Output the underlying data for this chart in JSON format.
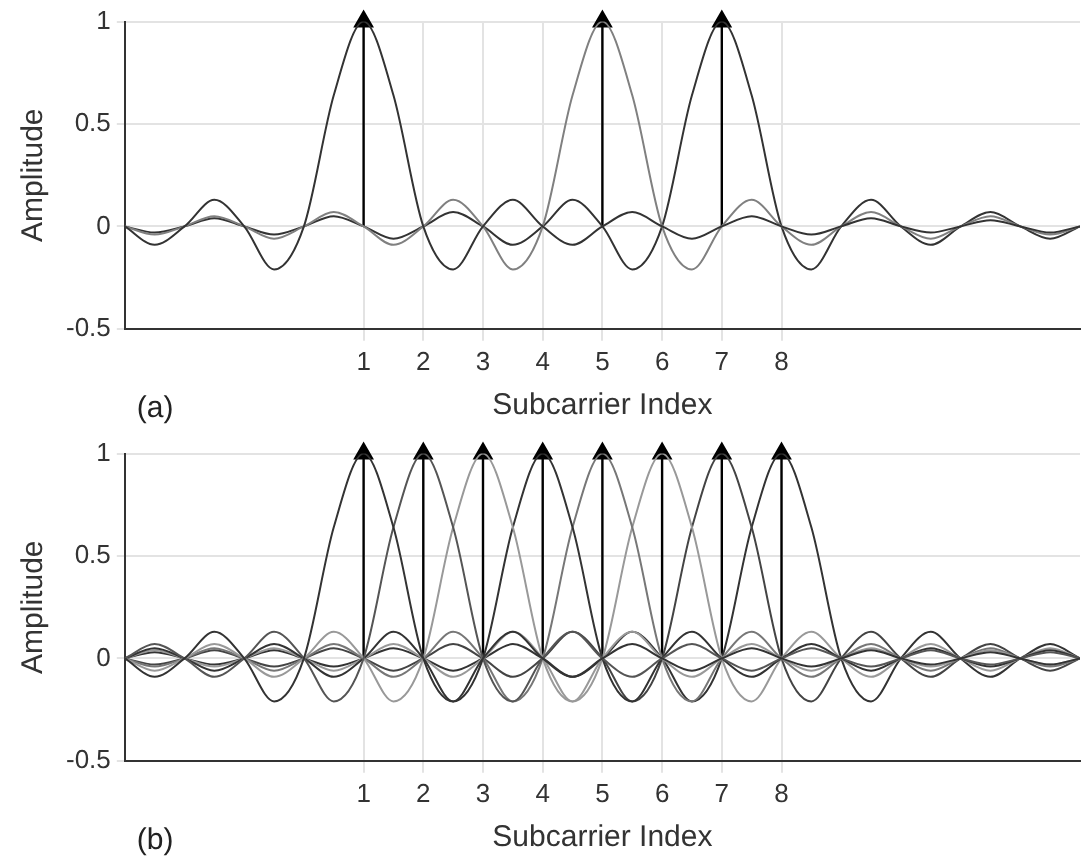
{
  "chart_data": [
    {
      "type": "line",
      "xlabel": "Subcarrier Index",
      "ylabel": "Amplitude",
      "annotations": [
        "(a)"
      ],
      "xlim": [
        -3,
        13
      ],
      "ylim": [
        -0.5,
        1
      ],
      "xticks": [
        1,
        2,
        3,
        4,
        5,
        6,
        7,
        8
      ],
      "yticks": [
        -0.5,
        0,
        0.5,
        1
      ],
      "grid": true,
      "legend": false,
      "marker": "none",
      "line_style": "solid",
      "x": [
        -3,
        -2.5,
        -2,
        -1.5,
        -1,
        -0.5,
        0,
        0.5,
        1,
        1.5,
        2,
        2.5,
        3,
        3.5,
        4,
        4.5,
        5,
        5.5,
        6,
        6.5,
        7,
        7.5,
        8,
        8.5,
        9,
        9.5,
        10,
        10.5,
        11,
        11.5,
        12,
        12.5,
        13
      ],
      "series": [
        {
          "color": "#333333",
          "values": [
            0,
            -0.09,
            0,
            0.13,
            0,
            -0.21,
            0,
            0.64,
            1,
            0.64,
            0,
            -0.21,
            0,
            0.13,
            0,
            -0.09,
            0,
            0.07,
            0,
            -0.06,
            0,
            0.05,
            0,
            -0.04,
            0,
            0.04,
            0,
            -0.03,
            0,
            0.03,
            0,
            -0.03,
            0
          ]
        },
        {
          "color": "#808080",
          "values": [
            0,
            -0.04,
            0,
            0.05,
            0,
            -0.06,
            0,
            0.07,
            0,
            -0.09,
            0,
            0.13,
            0,
            -0.21,
            0,
            0.64,
            1,
            0.64,
            0,
            -0.21,
            0,
            0.13,
            0,
            -0.09,
            0,
            0.07,
            0,
            -0.06,
            0,
            0.05,
            0,
            -0.04,
            0
          ]
        },
        {
          "color": "#333333",
          "values": [
            0,
            -0.03,
            0,
            0.04,
            0,
            -0.04,
            0,
            0.05,
            0,
            -0.06,
            0,
            0.07,
            0,
            -0.09,
            0,
            0.13,
            0,
            -0.21,
            0,
            0.64,
            1,
            0.64,
            0,
            -0.21,
            0,
            0.13,
            0,
            -0.09,
            0,
            0.07,
            0,
            -0.06,
            0
          ]
        },
        {
          "type": "lollipop",
          "marker": "triangle",
          "color": "#000000",
          "x": [
            1,
            5,
            7
          ],
          "values": [
            1,
            1,
            1
          ]
        }
      ]
    },
    {
      "type": "line",
      "xlabel": "Subcarrier Index",
      "ylabel": "Amplitude",
      "annotations": [
        "(b)"
      ],
      "xlim": [
        -3,
        13
      ],
      "ylim": [
        -0.5,
        1
      ],
      "xticks": [
        1,
        2,
        3,
        4,
        5,
        6,
        7,
        8
      ],
      "yticks": [
        -0.5,
        0,
        0.5,
        1
      ],
      "grid": true,
      "legend": false,
      "marker": "none",
      "line_style": "solid",
      "x": [
        -3,
        -2.5,
        -2,
        -1.5,
        -1,
        -0.5,
        0,
        0.5,
        1,
        1.5,
        2,
        2.5,
        3,
        3.5,
        4,
        4.5,
        5,
        5.5,
        6,
        6.5,
        7,
        7.5,
        8,
        8.5,
        9,
        9.5,
        10,
        10.5,
        11,
        11.5,
        12,
        12.5,
        13
      ],
      "series": [
        {
          "color": "#333333",
          "values": [
            0,
            -0.09,
            0,
            0.13,
            0,
            -0.21,
            0,
            0.64,
            1,
            0.64,
            0,
            -0.21,
            0,
            0.13,
            0,
            -0.09,
            0,
            0.07,
            0,
            -0.06,
            0,
            0.05,
            0,
            -0.04,
            0,
            0.04,
            0,
            -0.03,
            0,
            0.03,
            0,
            -0.03,
            0
          ]
        },
        {
          "color": "#555555",
          "values": [
            0,
            0.07,
            0,
            -0.09,
            0,
            0.13,
            0,
            -0.21,
            0,
            0.64,
            1,
            0.64,
            0,
            -0.21,
            0,
            0.13,
            0,
            -0.09,
            0,
            0.07,
            0,
            -0.06,
            0,
            0.05,
            0,
            -0.04,
            0,
            0.04,
            0,
            -0.03,
            0,
            0.03,
            0
          ]
        },
        {
          "color": "#999999",
          "values": [
            0,
            -0.06,
            0,
            0.07,
            0,
            -0.09,
            0,
            0.13,
            0,
            -0.21,
            0,
            0.64,
            1,
            0.64,
            0,
            -0.21,
            0,
            0.13,
            0,
            -0.09,
            0,
            0.07,
            0,
            -0.06,
            0,
            0.05,
            0,
            -0.04,
            0,
            0.04,
            0,
            -0.03,
            0
          ]
        },
        {
          "color": "#333333",
          "values": [
            0,
            0.05,
            0,
            -0.06,
            0,
            0.07,
            0,
            -0.09,
            0,
            0.13,
            0,
            -0.21,
            0,
            0.64,
            1,
            0.64,
            0,
            -0.21,
            0,
            0.13,
            0,
            -0.09,
            0,
            0.07,
            0,
            -0.06,
            0,
            0.05,
            0,
            -0.04,
            0,
            0.04,
            0
          ]
        },
        {
          "color": "#777777",
          "values": [
            0,
            -0.04,
            0,
            0.05,
            0,
            -0.06,
            0,
            0.07,
            0,
            -0.09,
            0,
            0.13,
            0,
            -0.21,
            0,
            0.64,
            1,
            0.64,
            0,
            -0.21,
            0,
            0.13,
            0,
            -0.09,
            0,
            0.07,
            0,
            -0.06,
            0,
            0.05,
            0,
            -0.04,
            0
          ]
        },
        {
          "color": "#999999",
          "values": [
            0,
            0.04,
            0,
            -0.04,
            0,
            0.05,
            0,
            -0.06,
            0,
            0.07,
            0,
            -0.09,
            0,
            0.13,
            0,
            -0.21,
            0,
            0.64,
            1,
            0.64,
            0,
            -0.21,
            0,
            0.13,
            0,
            -0.09,
            0,
            0.07,
            0,
            -0.06,
            0,
            0.05,
            0
          ]
        },
        {
          "color": "#444444",
          "values": [
            0,
            -0.03,
            0,
            0.04,
            0,
            -0.04,
            0,
            0.05,
            0,
            -0.06,
            0,
            0.07,
            0,
            -0.09,
            0,
            0.13,
            0,
            -0.21,
            0,
            0.64,
            1,
            0.64,
            0,
            -0.21,
            0,
            0.13,
            0,
            -0.09,
            0,
            0.07,
            0,
            -0.06,
            0
          ]
        },
        {
          "color": "#333333",
          "values": [
            0,
            0.03,
            0,
            -0.03,
            0,
            0.04,
            0,
            -0.04,
            0,
            0.05,
            0,
            -0.06,
            0,
            0.07,
            0,
            -0.09,
            0,
            0.13,
            0,
            -0.21,
            0,
            0.64,
            1,
            0.64,
            0,
            -0.21,
            0,
            0.13,
            0,
            -0.09,
            0,
            0.07,
            0
          ]
        },
        {
          "type": "lollipop",
          "marker": "triangle",
          "color": "#000000",
          "x": [
            1,
            2,
            3,
            4,
            5,
            6,
            7,
            8
          ],
          "values": [
            1,
            1,
            1,
            1,
            1,
            1,
            1,
            1
          ]
        }
      ]
    }
  ]
}
